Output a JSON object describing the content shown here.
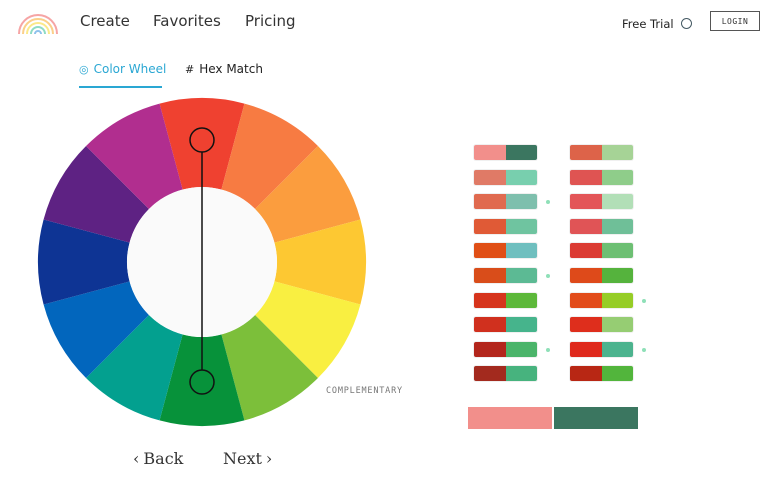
{
  "header": {
    "logo_icon": "rainbow-logo-icon",
    "nav": [
      {
        "label": "Create"
      },
      {
        "label": "Favorites"
      },
      {
        "label": "Pricing"
      }
    ],
    "free_trial_label": "Free Trial",
    "trial_toggle_icon": "circle-toggle-icon",
    "login_label": "LOGIN"
  },
  "tabs": [
    {
      "label": "Color Wheel",
      "icon": "color-wheel-icon",
      "active": true
    },
    {
      "label": "Hex Match",
      "icon": "hash-icon",
      "active": false
    }
  ],
  "wheel": {
    "mode_label": "COMPLEMENTARY",
    "segments": [
      "#ef4130",
      "#f77b42",
      "#fb9d3e",
      "#fdc832",
      "#f9ef41",
      "#7cbf3a",
      "#07923a",
      "#03a08f",
      "#0266bd",
      "#0e3494",
      "#5e2283",
      "#b12e8f"
    ],
    "marker_colors": {
      "primary": "#ef4130",
      "complement": "#07923a"
    }
  },
  "pager": {
    "back_label": "Back",
    "next_label": "Next",
    "back_icon": "chevron-left-icon",
    "next_icon": "chevron-right-icon"
  },
  "palette": {
    "left_column": [
      {
        "colors": [
          "#f28f8b",
          "#3b7660"
        ],
        "dot": false
      },
      {
        "colors": [
          "#e07a66",
          "#78cfae"
        ],
        "dot": false
      },
      {
        "colors": [
          "#e06a4f",
          "#7ebfad"
        ],
        "dot": true
      },
      {
        "colors": [
          "#e05a36",
          "#6fc4a0"
        ],
        "dot": false
      },
      {
        "colors": [
          "#e04f16",
          "#6fbfbf"
        ],
        "dot": false
      },
      {
        "colors": [
          "#d94d1a",
          "#5cba94"
        ],
        "dot": true
      },
      {
        "colors": [
          "#d6341c",
          "#5db83a"
        ],
        "dot": false
      },
      {
        "colors": [
          "#d0301e",
          "#46b48c"
        ],
        "dot": false
      },
      {
        "colors": [
          "#b3261c",
          "#4bb46a"
        ],
        "dot": true
      },
      {
        "colors": [
          "#a32a1e",
          "#47b37e"
        ],
        "dot": false
      }
    ],
    "right_column": [
      {
        "colors": [
          "#dd6349",
          "#a6d396"
        ],
        "dot": false
      },
      {
        "colors": [
          "#df5452",
          "#8fcd8a"
        ],
        "dot": false
      },
      {
        "colors": [
          "#e35558",
          "#b2dfb7"
        ],
        "dot": false
      },
      {
        "colors": [
          "#e05456",
          "#6fbf98"
        ],
        "dot": false
      },
      {
        "colors": [
          "#db3b33",
          "#6dbf73"
        ],
        "dot": false
      },
      {
        "colors": [
          "#de4a1a",
          "#55b33d"
        ],
        "dot": false
      },
      {
        "colors": [
          "#e24c1a",
          "#96cd26"
        ],
        "dot": true
      },
      {
        "colors": [
          "#de2e1c",
          "#96cd73"
        ],
        "dot": false
      },
      {
        "colors": [
          "#df2a1d",
          "#4cb38e"
        ],
        "dot": true
      },
      {
        "colors": [
          "#b82714",
          "#52b53c"
        ],
        "dot": false
      }
    ],
    "selected": [
      "#f28f8b",
      "#3b7660"
    ]
  }
}
